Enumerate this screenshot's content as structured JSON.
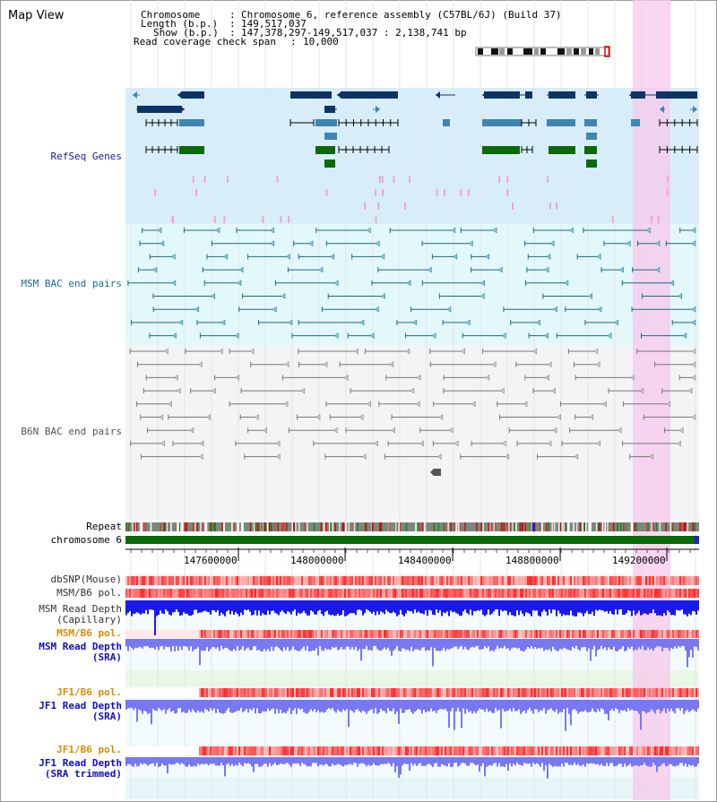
{
  "title": "Map View",
  "info": {
    "chromosome_label": "Chromosome",
    "chromosome_value": "Chromosome 6, reference assembly (C57BL/6J) (Build 37)",
    "length_label": "Length (b.p.)",
    "length_value": "149,517,037",
    "show_label": "Show (b.p.)",
    "show_value": "147,378,297-149,517,037 : 2,138,741 bp",
    "coverage_label": "Read coverage check span",
    "coverage_value": "10,000"
  },
  "tracks": {
    "refseq": "RefSeq Genes",
    "msm_bac": "MSM BAC end pairs",
    "b6n_bac": "B6N BAC end pairs",
    "repeat": "Repeat",
    "chromosome": "chromosome 6",
    "dbsnp": "dbSNP(Mouse)",
    "msm_b6_pol": "MSM/B6 pol.",
    "msm_depth_cap": "MSM Read Depth\n(Capillary)",
    "msm_b6_pol_sra": "MSM/B6 pol.",
    "msm_depth_sra": "MSM Read Depth\n(SRA)",
    "jf1_b6_pol": "JF1/B6 pol.",
    "jf1_depth_sra": "JF1 Read Depth\n(SRA)",
    "jf1_b6_pol_trim": "JF1/B6 pol.",
    "jf1_depth_trim": "JF1 Read Depth\n(SRA trimmed)"
  },
  "axis": {
    "ticks": [
      "147600000",
      "148000000",
      "148400000",
      "148800000",
      "149200000"
    ]
  },
  "colors": {
    "refseq_label": "#1a1aaa",
    "msm_bac_label": "#1a6a8a",
    "b6n_bac_label": "#555555",
    "pol_label": "#e08a00",
    "depth_label": "#1010c0",
    "highlight": "#f7c8ec",
    "refseq_bg": "#d7eefa",
    "msm_bg": "#e3f8fb",
    "b6n_bg": "#f4f4f7",
    "gene_dark": "#0c3468",
    "gene_mid": "#3e86b0",
    "gene_green": "#0a6a0a",
    "chromosome_band": "#0a6a0a",
    "depth_blue": "#1a1ae8",
    "depth_light": "#7878f2"
  }
}
